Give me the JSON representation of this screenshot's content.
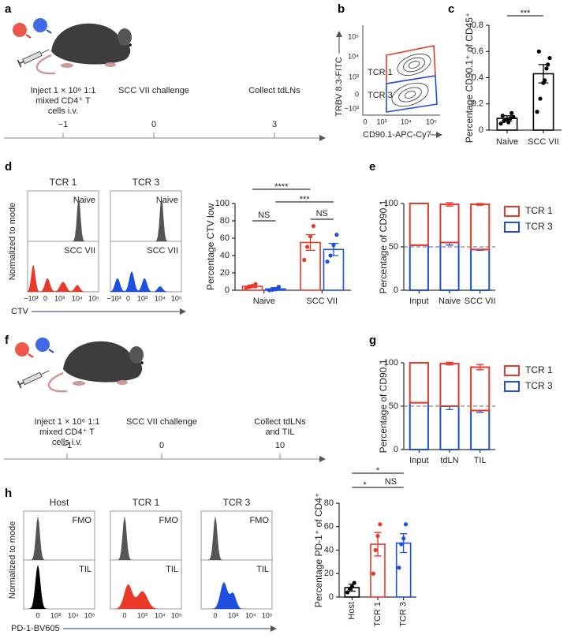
{
  "panels": {
    "a": {
      "label": "a",
      "events": [
        {
          "text": [
            "Inject 1 × 10⁶ 1:1",
            "mixed CD4⁺ T",
            "cells i.v."
          ],
          "day": "−1"
        },
        {
          "text": [
            "SCC VII challenge"
          ],
          "day": "0"
        },
        {
          "text": [
            "Collect tdLNs"
          ],
          "day": "3"
        }
      ]
    },
    "b": {
      "label": "b",
      "y_label": "TRBV 8.3-FITC",
      "x_label": "CD90.1-APC-Cy7",
      "y_ticks": [
        "10⁵",
        "10⁴",
        "10³",
        "0",
        "−10³"
      ],
      "x_ticks": [
        "0",
        "10³",
        "10⁴",
        "10⁵"
      ],
      "gates": [
        "TCR 1",
        "TCR 3"
      ]
    },
    "d": {
      "label": "d",
      "y_label": "Normalized to mode",
      "x_label": "CTV",
      "x_ticks": [
        "−10³",
        "0",
        "10³",
        "10⁴",
        "10⁵"
      ],
      "samples": [
        "TCR 1",
        "TCR 3"
      ],
      "sample_colors": [
        "#e8392b",
        "#1f4fe0"
      ],
      "rows": [
        "Naive",
        "SCC VII"
      ]
    },
    "f": {
      "label": "f",
      "events": [
        {
          "text": [
            "Inject 1 × 10⁶ 1:1",
            "mixed CD4⁺ T",
            "cells i.v."
          ],
          "day": "−1"
        },
        {
          "text": [
            "SCC VII challenge"
          ],
          "day": "0"
        },
        {
          "text": [
            "Collect tdLNs",
            "and TIL"
          ],
          "day": "10"
        }
      ]
    },
    "h": {
      "label": "h",
      "y_label": "Normalized to mode",
      "x_label": "PD-1-BV605",
      "x_ticks": [
        "0",
        "10³",
        "10⁴",
        "10⁵"
      ],
      "samples": [
        "Host",
        "TCR 1",
        "TCR 3"
      ],
      "sample_colors": [
        "#000000",
        "#e8392b",
        "#1f4fe0"
      ],
      "rows": [
        "FMO",
        "TIL"
      ]
    }
  },
  "chart_data": [
    {
      "panel": "c",
      "type": "bar",
      "y_label": "Percentage CD90.1⁺ of CD45⁺",
      "categories": [
        "Naive",
        "SCC VII"
      ],
      "values": [
        0.09,
        0.43
      ],
      "errors": [
        0.02,
        0.07
      ],
      "points": [
        [
          0.05,
          0.07,
          0.08,
          0.09,
          0.1,
          0.11,
          0.13,
          0.06
        ],
        [
          0.14,
          0.24,
          0.36,
          0.47,
          0.55,
          0.6,
          0.5,
          0.38
        ]
      ],
      "colors": [
        "#000000",
        "#000000"
      ],
      "ylim": [
        0,
        0.8
      ],
      "yticks": [
        0,
        0.2,
        0.4,
        0.6,
        0.8
      ],
      "annotations": [
        "***"
      ]
    },
    {
      "type": "grouped_bar",
      "y_label": "Percentage CTV low",
      "categories": [
        "Naive",
        "SCC VII"
      ],
      "series": [
        {
          "name": "TCR 1",
          "color": "#e8392b",
          "values": [
            4.5,
            55
          ],
          "errors": [
            1.5,
            9
          ],
          "points": [
            [
              2,
              4,
              5,
              7
            ],
            [
              35,
              50,
              62,
              74
            ]
          ]
        },
        {
          "name": "TCR 3",
          "color": "#1f4fe0",
          "values": [
            1.5,
            47
          ],
          "errors": [
            1.5,
            7
          ],
          "points": [
            [
              0,
              0.5,
              1,
              4
            ],
            [
              33,
              40,
              52,
              64
            ]
          ]
        }
      ],
      "ylim": [
        0,
        100
      ],
      "yticks": [
        0,
        20,
        40,
        60,
        80,
        100
      ],
      "annotations": [
        "****",
        "***",
        "NS",
        "NS"
      ]
    },
    {
      "panel": "e",
      "type": "stacked_bar",
      "y_label": "Percentage of CD90.1",
      "categories": [
        "Input",
        "Naive",
        "SCC VII"
      ],
      "series": [
        {
          "name": "TCR 1",
          "color": "#e8392b",
          "values": [
            48,
            44,
            52
          ],
          "errors": [
            null,
            2,
            1
          ]
        },
        {
          "name": "TCR 3",
          "color": "#1f4fe0",
          "values": [
            52,
            55,
            47
          ],
          "errors": [
            null,
            3,
            1
          ]
        }
      ],
      "ylim": [
        0,
        100
      ],
      "yticks": [
        0,
        50,
        100
      ],
      "reference_line": 50,
      "legend": "right"
    },
    {
      "panel": "g",
      "type": "stacked_bar",
      "y_label": "Percentage of CD90.1",
      "categories": [
        "Input",
        "tdLN",
        "TIL"
      ],
      "series": [
        {
          "name": "TCR 1",
          "color": "#e8392b",
          "values": [
            46,
            49,
            50
          ],
          "errors": [
            null,
            1.5,
            3
          ]
        },
        {
          "name": "TCR 3",
          "color": "#1f4fe0",
          "values": [
            54,
            50,
            45
          ],
          "errors": [
            null,
            4,
            2
          ]
        }
      ],
      "ylim": [
        0,
        100
      ],
      "yticks": [
        0,
        50,
        100
      ],
      "reference_line": 50,
      "legend": "right"
    },
    {
      "type": "bar",
      "y_label": "Percentage PD-1⁺ of CD4⁺",
      "categories": [
        "Host",
        "TCR 1",
        "TCR 3"
      ],
      "values": [
        8,
        45,
        46
      ],
      "errors": [
        3,
        10,
        8
      ],
      "points": [
        [
          4,
          7,
          9,
          12
        ],
        [
          20,
          40,
          52,
          62
        ],
        [
          25,
          45,
          50,
          62
        ]
      ],
      "colors": [
        "#000000",
        "#e8392b",
        "#1f4fe0"
      ],
      "ylim": [
        0,
        80
      ],
      "yticks": [
        0,
        20,
        40,
        60,
        80
      ],
      "annotations": [
        "*",
        "*",
        "NS"
      ]
    }
  ]
}
